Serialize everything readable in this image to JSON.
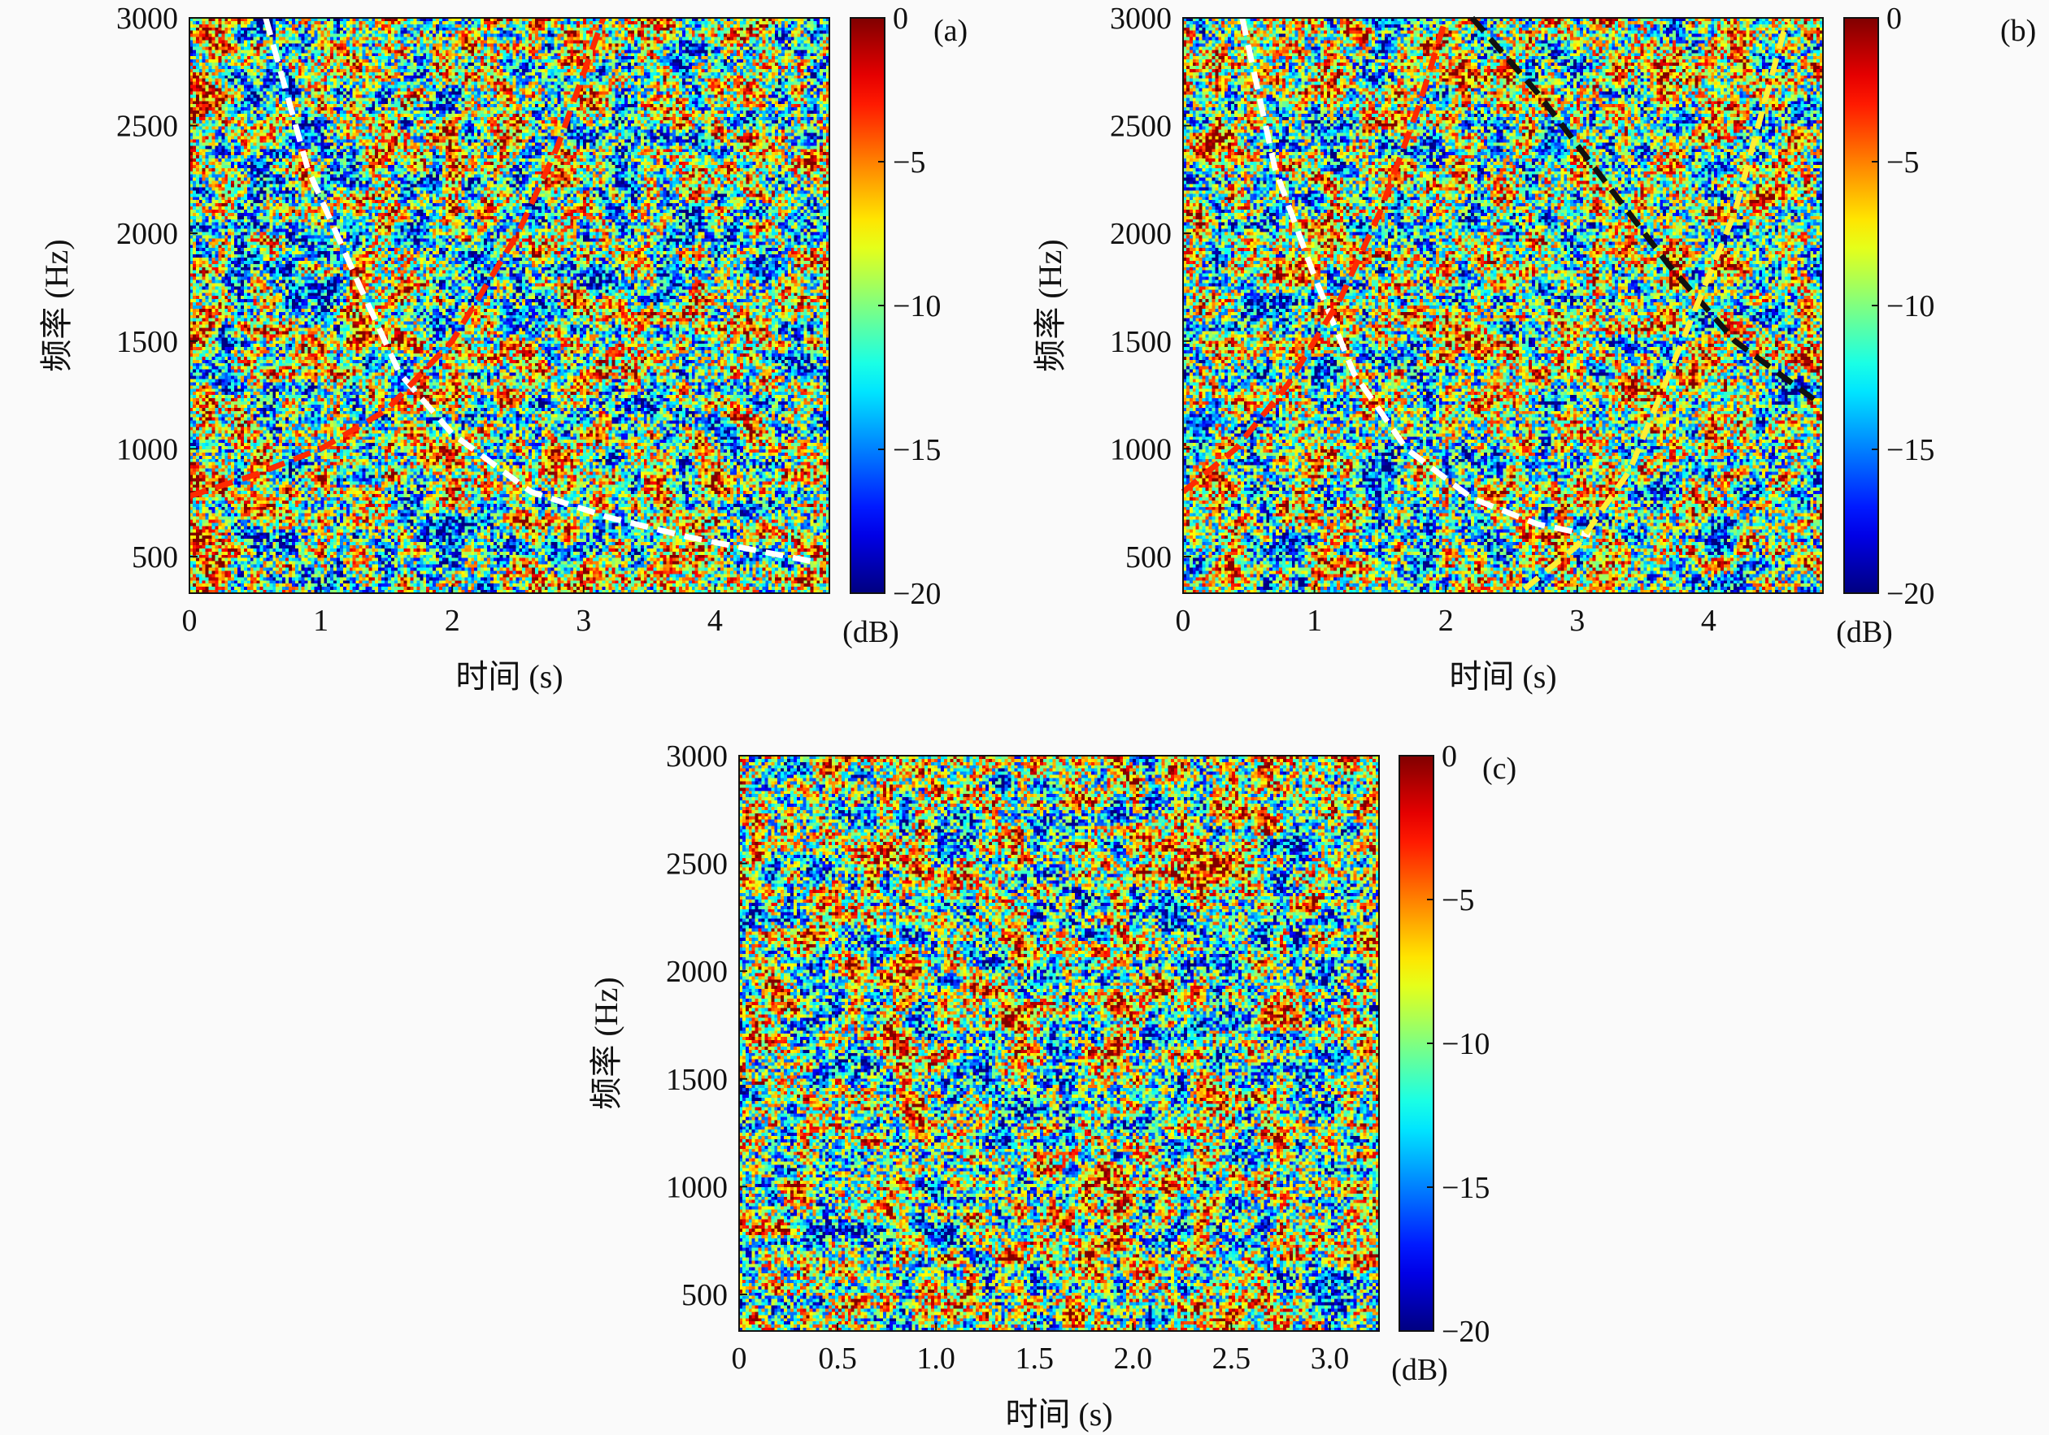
{
  "figure": {
    "colormap": "jet",
    "background": "#fafafa",
    "line_colors": {
      "white": "#ffffff",
      "red": "#ff2a00",
      "black": "#111111",
      "yellow": "#ffee33"
    }
  },
  "chart_data": [
    {
      "type": "heatmap",
      "panel_label": "(a)",
      "xlabel": "时间 (s)",
      "ylabel": "频率 (Hz)",
      "xlim": [
        0,
        4.87
      ],
      "ylim": [
        330,
        3000
      ],
      "xticks": [
        0,
        1,
        2,
        3,
        4
      ],
      "xtick_labels": [
        "0",
        "1",
        "2",
        "3",
        "4"
      ],
      "yticks": [
        500,
        1000,
        1500,
        2000,
        2500,
        3000
      ],
      "ytick_labels": [
        "500",
        "1000",
        "1500",
        "2000",
        "2500",
        "3000"
      ],
      "colorbar": {
        "min": -20,
        "max": 0,
        "ticks": [
          0,
          -5,
          -10,
          -15,
          -20
        ],
        "tick_labels": [
          "0",
          "−5",
          "−10",
          "−15",
          "−20"
        ],
        "unit": "(dB)"
      },
      "overlays": [
        {
          "color": "white",
          "style": "dashed",
          "x": [
            0.58,
            0.9,
            1.3,
            1.6,
            2.0,
            2.6,
            3.2,
            3.8,
            4.3,
            4.8
          ],
          "y": [
            3000,
            2300,
            1750,
            1350,
            1070,
            800,
            680,
            590,
            530,
            470
          ]
        },
        {
          "color": "red",
          "style": "dashed",
          "x": [
            0.0,
            0.5,
            1.0,
            1.5,
            2.0,
            2.5,
            2.8,
            3.15
          ],
          "y": [
            780,
            880,
            1000,
            1180,
            1500,
            2000,
            2400,
            3000
          ]
        }
      ]
    },
    {
      "type": "heatmap",
      "panel_label": "(b)",
      "xlabel": "时间 (s)",
      "ylabel": "频率 (Hz)",
      "xlim": [
        0,
        4.87
      ],
      "ylim": [
        330,
        3000
      ],
      "xticks": [
        0,
        1,
        2,
        3,
        4
      ],
      "xtick_labels": [
        "0",
        "1",
        "2",
        "3",
        "4"
      ],
      "yticks": [
        500,
        1000,
        1500,
        2000,
        2500,
        3000
      ],
      "ytick_labels": [
        "500",
        "1000",
        "1500",
        "2000",
        "2500",
        "3000"
      ],
      "colorbar": {
        "min": -20,
        "max": 0,
        "ticks": [
          0,
          -5,
          -10,
          -15,
          -20
        ],
        "tick_labels": [
          "0",
          "−5",
          "−10",
          "−15",
          "−20"
        ],
        "unit": "(dB)"
      },
      "overlays": [
        {
          "color": "white",
          "style": "dashed",
          "x": [
            0.45,
            0.7,
            1.0,
            1.3,
            1.7,
            2.2,
            2.7,
            3.1
          ],
          "y": [
            3000,
            2300,
            1800,
            1350,
            1000,
            770,
            650,
            600
          ]
        },
        {
          "color": "red",
          "style": "dashed",
          "x": [
            0.0,
            0.4,
            0.8,
            1.2,
            1.5,
            1.8,
            2.0
          ],
          "y": [
            800,
            1000,
            1300,
            1700,
            2100,
            2600,
            3000
          ]
        },
        {
          "color": "black",
          "style": "dashed",
          "x": [
            2.2,
            2.7,
            3.2,
            3.7,
            4.2,
            4.8
          ],
          "y": [
            3000,
            2650,
            2250,
            1850,
            1500,
            1230
          ]
        },
        {
          "color": "yellow",
          "style": "dashed",
          "x": [
            2.6,
            3.0,
            3.4,
            3.8,
            4.2,
            4.6
          ],
          "y": [
            350,
            550,
            900,
            1500,
            2100,
            3000
          ]
        }
      ]
    },
    {
      "type": "heatmap",
      "panel_label": "(c)",
      "xlabel": "时间 (s)",
      "ylabel": "频率 (Hz)",
      "xlim": [
        0,
        3.25
      ],
      "ylim": [
        330,
        3000
      ],
      "xticks": [
        0,
        0.5,
        1.0,
        1.5,
        2.0,
        2.5,
        3.0
      ],
      "xtick_labels": [
        "0",
        "0.5",
        "1.0",
        "1.5",
        "2.0",
        "2.5",
        "3.0"
      ],
      "yticks": [
        500,
        1000,
        1500,
        2000,
        2500,
        3000
      ],
      "ytick_labels": [
        "500",
        "1000",
        "1500",
        "2000",
        "2500",
        "3000"
      ],
      "colorbar": {
        "min": -20,
        "max": 0,
        "ticks": [
          0,
          -5,
          -10,
          -15,
          -20
        ],
        "tick_labels": [
          "0",
          "−5",
          "−10",
          "−15",
          "−20"
        ],
        "unit": "(dB)"
      },
      "overlays": []
    }
  ]
}
